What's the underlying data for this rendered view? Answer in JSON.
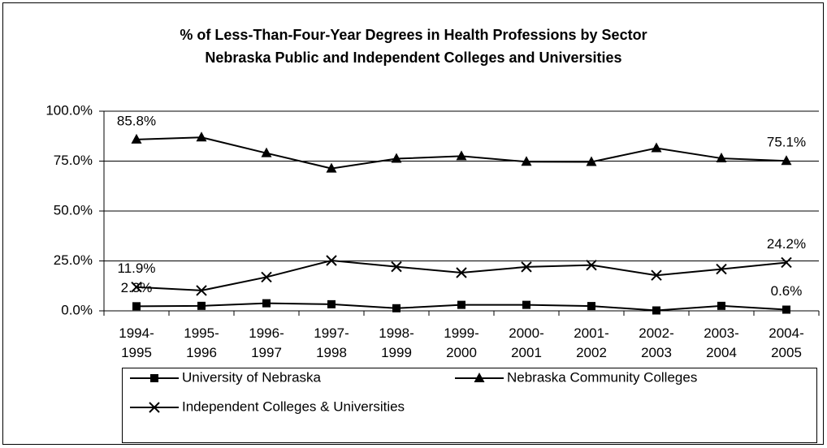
{
  "chart_data": {
    "type": "line",
    "title": "% of Less-Than-Four-Year Degrees in Health Professions by Sector",
    "subtitle": "Nebraska Public and Independent Colleges and Universities",
    "categories": [
      "1994-1995",
      "1995-1996",
      "1996-1997",
      "1997-1998",
      "1998-1999",
      "1999-2000",
      "2000-2001",
      "2001-2002",
      "2002-2003",
      "2003-2004",
      "2004-2005"
    ],
    "series": [
      {
        "name": "University of Nebraska",
        "color": "#000000",
        "marker": "square",
        "values": [
          2.3,
          2.5,
          3.8,
          3.3,
          1.3,
          3.0,
          3.0,
          2.4,
          0.2,
          2.5,
          0.6
        ],
        "value_labels": [
          "2.3%",
          null,
          null,
          null,
          null,
          null,
          null,
          null,
          null,
          null,
          "0.6%"
        ]
      },
      {
        "name": "Nebraska Community Colleges",
        "color": "#000000",
        "marker": "triangle",
        "values": [
          85.8,
          86.9,
          79.0,
          71.3,
          76.2,
          77.5,
          74.7,
          74.6,
          81.5,
          76.4,
          75.1
        ],
        "value_labels": [
          "85.8%",
          null,
          null,
          null,
          null,
          null,
          null,
          null,
          null,
          null,
          "75.1%"
        ]
      },
      {
        "name": "Independent Colleges & Universities",
        "color": "#000000",
        "marker": "x",
        "values": [
          11.9,
          10.2,
          16.9,
          25.2,
          22.1,
          19.1,
          22.0,
          22.9,
          17.8,
          20.9,
          24.2
        ],
        "value_labels": [
          "11.9%",
          null,
          null,
          null,
          null,
          null,
          null,
          null,
          null,
          null,
          "24.2%"
        ]
      }
    ],
    "ylim": [
      0,
      100
    ],
    "yticks": [
      {
        "value": 0,
        "label": "0.0%"
      },
      {
        "value": 25,
        "label": "25.0%"
      },
      {
        "value": 50,
        "label": "50.0%"
      },
      {
        "value": 75,
        "label": "75.0%"
      },
      {
        "value": 100,
        "label": "100.0%"
      }
    ],
    "grid": true
  }
}
